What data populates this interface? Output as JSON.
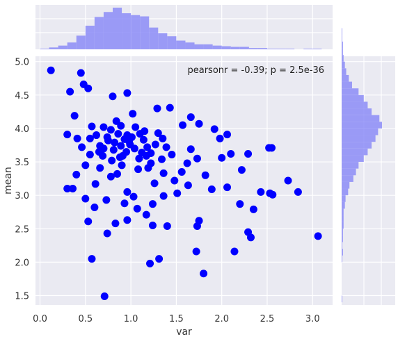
{
  "chart_data": {
    "type": "scatter",
    "subtype": "jointplot",
    "xlabel": "var",
    "ylabel": "mean",
    "xlim": [
      -0.05,
      3.22
    ],
    "ylim": [
      1.36,
      5.08
    ],
    "xticks": [
      "0.0",
      "0.5",
      "1.0",
      "1.5",
      "2.0",
      "2.5",
      "3.0"
    ],
    "yticks": [
      "1.5",
      "2.0",
      "2.5",
      "3.0",
      "3.5",
      "4.0",
      "4.5",
      "5.0"
    ],
    "annotation": "pearsonr = -0.39; p = 2.5e-36",
    "point_color": "#0000ff",
    "hist_color": "#8c8cf7",
    "grid": true,
    "background": "#eaeaf2",
    "points": [
      [
        0.12,
        4.87
      ],
      [
        0.45,
        4.83
      ],
      [
        0.71,
        1.49
      ],
      [
        0.57,
        2.05
      ],
      [
        1.21,
        1.98
      ],
      [
        1.31,
        2.05
      ],
      [
        1.8,
        1.83
      ],
      [
        3.06,
        2.39
      ],
      [
        2.32,
        2.37
      ],
      [
        2.29,
        2.45
      ],
      [
        2.14,
        2.16
      ],
      [
        1.72,
        2.16
      ],
      [
        0.74,
        2.43
      ],
      [
        0.53,
        2.61
      ],
      [
        2.43,
        3.05
      ],
      [
        2.84,
        3.05
      ],
      [
        2.73,
        3.22
      ],
      [
        2.53,
        3.03
      ],
      [
        2.56,
        3.01
      ],
      [
        2.2,
        2.87
      ],
      [
        2.35,
        2.79
      ],
      [
        2.29,
        3.62
      ],
      [
        2.52,
        3.71
      ],
      [
        2.55,
        3.71
      ],
      [
        1.98,
        3.85
      ],
      [
        2.0,
        3.56
      ],
      [
        1.66,
        3.69
      ],
      [
        1.75,
        2.62
      ],
      [
        1.73,
        2.54
      ],
      [
        1.4,
        2.54
      ],
      [
        1.24,
        2.55
      ],
      [
        1.17,
        2.71
      ],
      [
        0.96,
        2.63
      ],
      [
        0.83,
        2.58
      ],
      [
        0.6,
        2.82
      ],
      [
        0.5,
        2.95
      ],
      [
        0.3,
        3.1
      ],
      [
        0.36,
        3.1
      ],
      [
        0.41,
        3.85
      ],
      [
        0.3,
        3.91
      ],
      [
        0.33,
        4.55
      ],
      [
        0.48,
        4.66
      ],
      [
        0.53,
        4.6
      ],
      [
        0.38,
        4.19
      ],
      [
        0.8,
        4.48
      ],
      [
        0.96,
        4.53
      ],
      [
        1.29,
        4.3
      ],
      [
        1.43,
        4.31
      ],
      [
        1.66,
        4.17
      ],
      [
        1.75,
        4.07
      ],
      [
        1.57,
        4.05
      ],
      [
        1.92,
        3.99
      ],
      [
        2.06,
        3.91
      ],
      [
        2.1,
        3.62
      ],
      [
        2.22,
        3.38
      ],
      [
        2.06,
        3.12
      ],
      [
        1.89,
        3.09
      ],
      [
        1.82,
        3.3
      ],
      [
        1.63,
        3.15
      ],
      [
        1.48,
        3.22
      ],
      [
        1.36,
        2.99
      ],
      [
        1.24,
        2.87
      ],
      [
        1.07,
        2.8
      ],
      [
        0.93,
        2.88
      ],
      [
        0.73,
        2.93
      ],
      [
        0.61,
        3.17
      ],
      [
        0.66,
        3.41
      ],
      [
        0.79,
        3.52
      ],
      [
        0.89,
        3.74
      ],
      [
        1.01,
        3.87
      ],
      [
        1.12,
        3.64
      ],
      [
        1.18,
        3.72
      ],
      [
        0.62,
        3.9
      ],
      [
        0.7,
        4.02
      ],
      [
        0.84,
        4.11
      ],
      [
        1.02,
        4.22
      ],
      [
        0.91,
        3.59
      ],
      [
        0.85,
        3.32
      ],
      [
        1.08,
        3.39
      ],
      [
        1.22,
        3.48
      ],
      [
        1.34,
        3.54
      ],
      [
        1.45,
        3.61
      ],
      [
        1.56,
        3.35
      ],
      [
        1.62,
        3.48
      ],
      [
        1.73,
        3.55
      ],
      [
        0.46,
        3.72
      ],
      [
        0.55,
        3.61
      ],
      [
        0.4,
        3.31
      ],
      [
        0.5,
        3.45
      ],
      [
        0.96,
        3.05
      ],
      [
        1.03,
        2.98
      ],
      [
        1.26,
        3.18
      ],
      [
        1.36,
        3.33
      ],
      [
        1.51,
        3.03
      ],
      [
        0.81,
        3.68
      ],
      [
        0.98,
        3.81
      ],
      [
        1.15,
        3.96
      ],
      [
        0.66,
        3.74
      ],
      [
        0.57,
        4.03
      ],
      [
        0.75,
        3.82
      ],
      [
        0.86,
        3.92
      ],
      [
        0.95,
        3.65
      ],
      [
        1.09,
        3.55
      ],
      [
        0.78,
        3.28
      ],
      [
        0.69,
        3.59
      ],
      [
        1.05,
        4.02
      ],
      [
        1.14,
        3.83
      ],
      [
        1.27,
        3.76
      ],
      [
        0.9,
        3.45
      ],
      [
        0.74,
        3.87
      ],
      [
        0.99,
        3.76
      ],
      [
        1.19,
        3.41
      ],
      [
        1.39,
        3.72
      ],
      [
        1.3,
        3.93
      ],
      [
        0.55,
        3.85
      ],
      [
        0.65,
        3.65
      ],
      [
        0.89,
        4.04
      ],
      [
        1.17,
        3.59
      ],
      [
        0.82,
        3.79
      ],
      [
        0.96,
        3.9
      ],
      [
        1.04,
        3.7
      ],
      [
        0.93,
        3.84
      ],
      [
        0.7,
        3.7
      ],
      [
        1.1,
        3.92
      ],
      [
        0.78,
        3.98
      ],
      [
        1.22,
        3.63
      ],
      [
        1.35,
        3.85
      ],
      [
        0.88,
        3.57
      ]
    ],
    "x_hist": {
      "bin_start": 0.0,
      "bin_width": 0.1,
      "counts": [
        1,
        3,
        6,
        11,
        22,
        38,
        52,
        60,
        67,
        58,
        55,
        53,
        35,
        26,
        21,
        14,
        11,
        8,
        8,
        6,
        5,
        4,
        4,
        2,
        2,
        1,
        1,
        1,
        0,
        1,
        1,
        0
      ]
    },
    "y_hist": {
      "bin_start": 1.4,
      "bin_width": 0.1,
      "counts": [
        1,
        0,
        0,
        0,
        0,
        0,
        1,
        2,
        1,
        2,
        2,
        3,
        3,
        3,
        5,
        6,
        10,
        12,
        18,
        22,
        26,
        34,
        40,
        46,
        52,
        56,
        62,
        58,
        46,
        40,
        34,
        26,
        16,
        11,
        7,
        5,
        3,
        2,
        2,
        1,
        1,
        0
      ]
    }
  }
}
